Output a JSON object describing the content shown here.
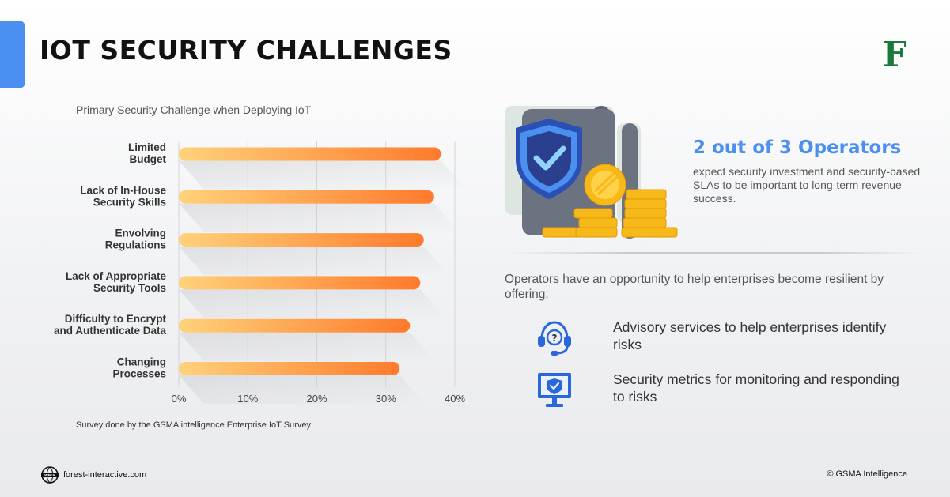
{
  "header": {
    "title": "IOT SECURITY CHALLENGES",
    "logo_letter": "F",
    "accent_color": "#4b8ff0",
    "logo_color": "#1a7a3a"
  },
  "chart_data": {
    "type": "bar",
    "orientation": "horizontal",
    "title": "Primary Security Challenge when Deploying IoT",
    "categories": [
      [
        "Limited",
        "Budget"
      ],
      [
        "Lack of In-House",
        "Security Skills"
      ],
      [
        "Envolving",
        "Regulations"
      ],
      [
        "Lack of Appropriate",
        "Security Tools"
      ],
      [
        "Difficulty to Encrypt",
        "and Authenticate Data"
      ],
      [
        "Changing",
        "Processes"
      ]
    ],
    "values": [
      38,
      37,
      35.5,
      35,
      33.5,
      32
    ],
    "xlim": [
      0,
      40
    ],
    "ticks": [
      "0%",
      "10%",
      "20%",
      "30%",
      "40%"
    ],
    "grid": true,
    "bar_colors": [
      "#ffd27a",
      "#ff7a2c"
    ]
  },
  "survey_note": "Survey done by the GSMA intelligence Enterprise IoT Survey",
  "stat": {
    "headline": "2 out of 3 Operators",
    "body": "expect security investment and security-based SLAs to be important to long-term revenue success."
  },
  "illustration": {
    "icon": "shield-check-coins-icon"
  },
  "intro": "Operators have an opportunity to help enterprises become resilient by offering:",
  "offers": [
    {
      "icon": "headset-support-icon",
      "text": "Advisory services to help enterprises identify risks"
    },
    {
      "icon": "monitor-shield-icon",
      "text": "Security metrics for monitoring and responding to risks"
    }
  ],
  "footer": {
    "website": "forest-interactive.com",
    "www_icon": "www-globe-icon",
    "copyright": "© GSMA Intelligence"
  }
}
